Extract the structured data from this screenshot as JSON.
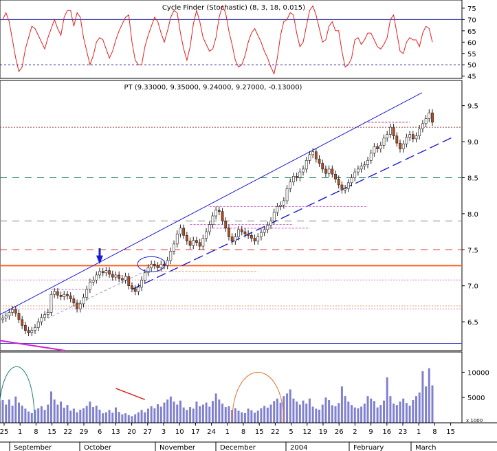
{
  "chart_data": [
    {
      "panel": "oscillator",
      "type": "line",
      "title": "Cycle Finder (Stochastic) (8, 3, 18, 0.015)",
      "y_ticks": [
        "75",
        "70",
        "65",
        "60",
        "55",
        "50",
        "45"
      ],
      "ylim": [
        44,
        78
      ],
      "upper_level": 70,
      "lower_level": 50,
      "line_color": "#e02020",
      "values": [
        70,
        73,
        69,
        61,
        53,
        47,
        49,
        57,
        62,
        67,
        66,
        63,
        60,
        57,
        62,
        66,
        70,
        66,
        63,
        71,
        74,
        74,
        67,
        73,
        71,
        62,
        56,
        50,
        54,
        60,
        62,
        61,
        57,
        53,
        56,
        61,
        65,
        68,
        71,
        72,
        60,
        52,
        50,
        50,
        58,
        63,
        67,
        71,
        69,
        64,
        60,
        65,
        71,
        74,
        73,
        64,
        57,
        52,
        58,
        68,
        74,
        69,
        62,
        59,
        56,
        57,
        62,
        71,
        76,
        73,
        65,
        59,
        52,
        49,
        50,
        54,
        60,
        64,
        66,
        63,
        60,
        56,
        53,
        49,
        46,
        53,
        63,
        69,
        70,
        73,
        72,
        64,
        58,
        60,
        67,
        74,
        76,
        72,
        66,
        60,
        61,
        67,
        69,
        65,
        65,
        56,
        49,
        50,
        53,
        61,
        62,
        59,
        61,
        64,
        64,
        61,
        58,
        57,
        59,
        62,
        70,
        72,
        64,
        56,
        55,
        60,
        62,
        61,
        61,
        58,
        64,
        67,
        66,
        60
      ],
      "grid": true
    },
    {
      "panel": "price",
      "type": "candlestick",
      "title": "PT (9.33000, 9.35000, 9.24000, 9.27000, -0.13000)",
      "y_ticks": [
        "9.5",
        "9.0",
        "8.5",
        "8.0",
        "7.5",
        "7.0",
        "6.5"
      ],
      "ylim": [
        6.1,
        9.85
      ],
      "closes": [
        6.55,
        6.58,
        6.63,
        6.67,
        6.62,
        6.53,
        6.45,
        6.38,
        6.35,
        6.38,
        6.42,
        6.5,
        6.56,
        6.6,
        6.63,
        6.88,
        6.92,
        6.87,
        6.85,
        6.88,
        6.86,
        6.82,
        6.76,
        6.68,
        6.75,
        6.84,
        6.95,
        7.05,
        7.08,
        7.15,
        7.2,
        7.18,
        7.21,
        7.16,
        7.12,
        7.15,
        7.1,
        7.08,
        7.13,
        7.0,
        6.96,
        6.92,
        6.98,
        7.08,
        7.18,
        7.25,
        7.3,
        7.28,
        7.25,
        7.3,
        7.28,
        7.35,
        7.48,
        7.58,
        7.72,
        7.8,
        7.7,
        7.62,
        7.56,
        7.63,
        7.6,
        7.55,
        7.66,
        7.75,
        7.85,
        7.97,
        8.05,
        8.03,
        7.9,
        7.8,
        7.68,
        7.62,
        7.68,
        7.78,
        7.75,
        7.72,
        7.7,
        7.66,
        7.62,
        7.68,
        7.74,
        7.78,
        7.84,
        7.9,
        8.02,
        8.1,
        8.12,
        8.18,
        8.35,
        8.44,
        8.52,
        8.5,
        8.58,
        8.62,
        8.74,
        8.82,
        8.86,
        8.76,
        8.7,
        8.62,
        8.56,
        8.62,
        8.55,
        8.48,
        8.4,
        8.33,
        8.35,
        8.43,
        8.5,
        8.58,
        8.62,
        8.66,
        8.68,
        8.74,
        8.84,
        8.93,
        8.9,
        8.95,
        9.05,
        9.1,
        9.2,
        9.08,
        8.98,
        8.9,
        8.97,
        9.06,
        9.1,
        9.04,
        9.08,
        9.18,
        9.25,
        9.32,
        9.4,
        9.27
      ],
      "volumes": [
        1120,
        900,
        1150,
        850,
        1300,
        1000,
        850,
        700,
        560,
        480,
        650,
        720,
        820,
        640,
        900,
        1550,
        1150,
        900,
        1050,
        750,
        880,
        600,
        700,
        520,
        650,
        720,
        840,
        1050,
        780,
        850,
        650,
        470,
        520,
        640,
        500,
        760,
        540,
        420,
        470,
        380,
        330,
        420,
        520,
        640,
        520,
        700,
        820,
        720,
        920,
        800,
        1000,
        1150,
        1300,
        1050,
        900,
        1100,
        760,
        640,
        780,
        700,
        1050,
        820,
        900,
        1000,
        800,
        1080,
        1450,
        1150,
        950,
        780,
        820,
        640,
        720,
        600,
        520,
        480,
        700,
        620,
        500,
        600,
        720,
        840,
        750,
        900,
        1080,
        1200,
        1000,
        1320,
        1450,
        1650,
        1200,
        1050,
        900,
        1100,
        950,
        1200,
        800,
        700,
        650,
        900,
        1250,
        1120,
        870,
        820,
        980,
        1800,
        1320,
        1050,
        880,
        760,
        720,
        800,
        950,
        1320,
        1200,
        1080,
        760,
        880,
        1100,
        2250,
        1320,
        950,
        880,
        1050,
        1200,
        980,
        850,
        1120,
        1320,
        1500,
        2550,
        1800,
        2700,
        1850
      ],
      "x_ticks": [
        "25",
        "1",
        "8",
        "15",
        "22",
        "29",
        "6",
        "13",
        "20",
        "27",
        "3",
        "10",
        "17",
        "24",
        "1",
        "8",
        "15",
        "22",
        "5",
        "12",
        "19",
        "26",
        "2",
        "9",
        "16",
        "23",
        "1",
        "8",
        "15"
      ],
      "month_labels": [
        "September",
        "October",
        "November",
        "December",
        "2004",
        "February",
        "March"
      ],
      "volume_ticks": [
        "10000",
        "5000"
      ],
      "volume_unit": "x 1000",
      "horizontal_levels": [
        {
          "value": 9.2,
          "style": "dotted",
          "color": "#a04040"
        },
        {
          "value": 8.5,
          "style": "dashed",
          "color": "#208060"
        },
        {
          "value": 7.9,
          "style": "dashed",
          "color": "#808080"
        },
        {
          "value": 7.5,
          "style": "dashed",
          "color": "#e02020"
        },
        {
          "value": 7.28,
          "style": "solid",
          "color": "#ff6020"
        },
        {
          "value": 7.08,
          "style": "dotted",
          "color": "#d080d0"
        },
        {
          "value": 6.72,
          "style": "dotted",
          "color": "#e0a060"
        },
        {
          "value": 6.68,
          "style": "dotted",
          "color": "#d080d0"
        },
        {
          "value": 6.2,
          "style": "solid",
          "color": "#4040c0"
        }
      ],
      "candle_up_color": "#ffffff",
      "candle_down_color": "#b84a1c",
      "volume_color": "#8080d0",
      "channel_color": "#1a1ad0",
      "grid": false
    }
  ]
}
